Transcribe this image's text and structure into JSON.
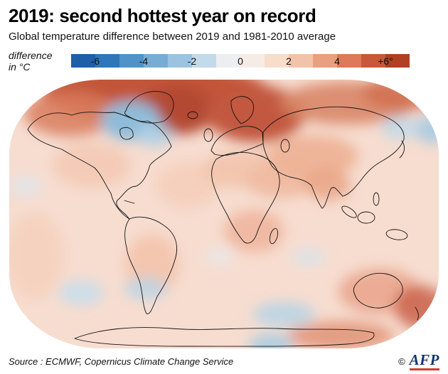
{
  "header": {
    "title": "2019: second hottest year on record",
    "subtitle": "Global temperature difference between 2019 and 1981-2010 average"
  },
  "legend": {
    "label_line1": "difference",
    "label_line2": "in °C",
    "unit": "°C",
    "domain": [
      -7,
      7
    ],
    "stops": [
      "#1f5fa8",
      "#2f77b8",
      "#4f93c8",
      "#77add4",
      "#9cc4e0",
      "#c2daea",
      "#eceef0",
      "#f7ece5",
      "#f8ddcb",
      "#f3c3a9",
      "#ea9f7f",
      "#dd7a5a",
      "#c95739",
      "#b03f24"
    ],
    "ticks": [
      {
        "label": "-6",
        "value": -6
      },
      {
        "label": "-4",
        "value": -4
      },
      {
        "label": "-2",
        "value": -2
      },
      {
        "label": "0",
        "value": 0
      },
      {
        "label": "2",
        "value": 2
      },
      {
        "label": "4",
        "value": 4
      },
      {
        "label": "+6°",
        "value": 6
      }
    ]
  },
  "map": {
    "type": "world-temperature-anomaly-heatmap",
    "projection": "robinson-like",
    "base_color": "#f7ddd0",
    "observations": [
      {
        "region": "Arctic, Greenland and northern Canada",
        "anomaly_c": "+4 to +6"
      },
      {
        "region": "Scandinavia, eastern Europe and western Russia",
        "anomaly_c": "+3 to +5"
      },
      {
        "region": "Labrador / northwest North Atlantic",
        "anomaly_c": "-2 to -4"
      },
      {
        "region": "Most land and ocean areas",
        "anomaly_c": "0 to +2"
      },
      {
        "region": "Australia and southwest Pacific",
        "anomaly_c": "+2 to +4"
      },
      {
        "region": "Scattered Southern Ocean and Antarctic coastal patches",
        "anomaly_c": "-1 to -2"
      }
    ]
  },
  "footer": {
    "source": "Source : ECMWF, Copernicus Climate Change Service",
    "copyright": "©",
    "logo": "AFP"
  }
}
